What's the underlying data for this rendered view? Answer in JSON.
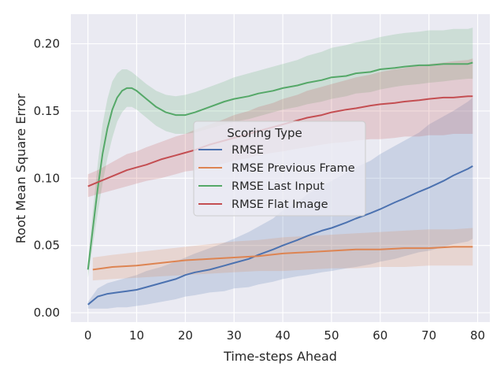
{
  "chart_data": {
    "type": "line",
    "xlabel": "Time-steps Ahead",
    "ylabel": "Root Mean Square Error",
    "xlim": [
      -3.5,
      82.5
    ],
    "ylim": [
      -0.007,
      0.222
    ],
    "xticks": [
      0,
      10,
      20,
      30,
      40,
      50,
      60,
      70,
      80
    ],
    "yticks": [
      0.0,
      0.05,
      0.1,
      0.15,
      0.2
    ],
    "ytick_labels": [
      "0.00",
      "0.05",
      "0.10",
      "0.15",
      "0.20"
    ],
    "grid": true,
    "legend": {
      "title": "Scoring Type",
      "placement": "center"
    },
    "series": [
      {
        "name": "RMSE",
        "color": "#4c72b0",
        "x": [
          0,
          2,
          4,
          6,
          8,
          10,
          12,
          15,
          18,
          20,
          22,
          25,
          28,
          30,
          33,
          35,
          38,
          40,
          43,
          45,
          48,
          50,
          53,
          55,
          58,
          60,
          63,
          65,
          68,
          70,
          73,
          75,
          78,
          79
        ],
        "y": [
          0.006,
          0.012,
          0.014,
          0.015,
          0.016,
          0.017,
          0.019,
          0.022,
          0.025,
          0.028,
          0.03,
          0.032,
          0.035,
          0.037,
          0.04,
          0.043,
          0.047,
          0.05,
          0.054,
          0.057,
          0.061,
          0.063,
          0.067,
          0.07,
          0.074,
          0.077,
          0.082,
          0.085,
          0.09,
          0.093,
          0.098,
          0.102,
          0.107,
          0.109
        ],
        "lower": [
          0.003,
          0.003,
          0.003,
          0.004,
          0.004,
          0.005,
          0.006,
          0.008,
          0.01,
          0.012,
          0.013,
          0.015,
          0.016,
          0.018,
          0.019,
          0.021,
          0.023,
          0.025,
          0.027,
          0.028,
          0.03,
          0.031,
          0.033,
          0.034,
          0.036,
          0.038,
          0.04,
          0.042,
          0.045,
          0.046,
          0.049,
          0.051,
          0.053,
          0.055
        ],
        "upper": [
          0.008,
          0.018,
          0.022,
          0.024,
          0.026,
          0.028,
          0.031,
          0.034,
          0.038,
          0.041,
          0.044,
          0.048,
          0.052,
          0.055,
          0.06,
          0.064,
          0.07,
          0.076,
          0.082,
          0.088,
          0.094,
          0.098,
          0.104,
          0.108,
          0.113,
          0.118,
          0.124,
          0.128,
          0.134,
          0.14,
          0.146,
          0.15,
          0.157,
          0.16
        ]
      },
      {
        "name": "RMSE Previous Frame",
        "color": "#dd8452",
        "x": [
          1,
          5,
          10,
          15,
          20,
          25,
          30,
          35,
          40,
          45,
          50,
          55,
          60,
          65,
          70,
          75,
          79
        ],
        "y": [
          0.032,
          0.034,
          0.035,
          0.037,
          0.039,
          0.04,
          0.041,
          0.042,
          0.044,
          0.045,
          0.046,
          0.047,
          0.047,
          0.048,
          0.048,
          0.049,
          0.049
        ],
        "lower": [
          0.024,
          0.025,
          0.026,
          0.027,
          0.028,
          0.029,
          0.03,
          0.031,
          0.031,
          0.032,
          0.033,
          0.033,
          0.034,
          0.034,
          0.035,
          0.035,
          0.035
        ],
        "upper": [
          0.041,
          0.043,
          0.045,
          0.047,
          0.049,
          0.051,
          0.053,
          0.054,
          0.056,
          0.057,
          0.058,
          0.059,
          0.06,
          0.061,
          0.062,
          0.062,
          0.063
        ]
      },
      {
        "name": "RMSE Last Input",
        "color": "#55a868",
        "x": [
          0,
          1,
          2,
          3,
          4,
          5,
          6,
          7,
          8,
          9,
          10,
          12,
          14,
          16,
          18,
          20,
          22,
          25,
          28,
          30,
          33,
          35,
          38,
          40,
          43,
          45,
          48,
          50,
          53,
          55,
          58,
          60,
          63,
          65,
          68,
          70,
          73,
          75,
          78,
          79
        ],
        "y": [
          0.032,
          0.062,
          0.092,
          0.118,
          0.137,
          0.151,
          0.16,
          0.165,
          0.167,
          0.167,
          0.165,
          0.159,
          0.153,
          0.149,
          0.147,
          0.147,
          0.149,
          0.153,
          0.157,
          0.159,
          0.161,
          0.163,
          0.165,
          0.167,
          0.169,
          0.171,
          0.173,
          0.175,
          0.176,
          0.178,
          0.179,
          0.181,
          0.182,
          0.183,
          0.184,
          0.184,
          0.185,
          0.185,
          0.185,
          0.186
        ],
        "lower": [
          0.026,
          0.05,
          0.074,
          0.096,
          0.115,
          0.13,
          0.142,
          0.149,
          0.153,
          0.153,
          0.151,
          0.145,
          0.139,
          0.135,
          0.133,
          0.133,
          0.134,
          0.137,
          0.14,
          0.142,
          0.144,
          0.146,
          0.149,
          0.151,
          0.153,
          0.155,
          0.157,
          0.159,
          0.161,
          0.163,
          0.164,
          0.166,
          0.168,
          0.169,
          0.17,
          0.171,
          0.172,
          0.173,
          0.174,
          0.174
        ],
        "upper": [
          0.038,
          0.075,
          0.11,
          0.14,
          0.159,
          0.172,
          0.178,
          0.181,
          0.181,
          0.179,
          0.176,
          0.17,
          0.165,
          0.162,
          0.161,
          0.162,
          0.164,
          0.168,
          0.172,
          0.175,
          0.178,
          0.18,
          0.183,
          0.185,
          0.188,
          0.191,
          0.194,
          0.197,
          0.199,
          0.201,
          0.203,
          0.205,
          0.207,
          0.208,
          0.209,
          0.21,
          0.21,
          0.211,
          0.211,
          0.212
        ]
      },
      {
        "name": "RMSE Flat Image",
        "color": "#c44e52",
        "x": [
          0,
          2,
          4,
          6,
          8,
          10,
          12,
          15,
          18,
          20,
          22,
          25,
          28,
          30,
          33,
          35,
          38,
          40,
          43,
          45,
          48,
          50,
          53,
          55,
          58,
          60,
          63,
          65,
          68,
          70,
          73,
          75,
          78,
          79
        ],
        "y": [
          0.094,
          0.097,
          0.1,
          0.103,
          0.106,
          0.108,
          0.11,
          0.114,
          0.117,
          0.119,
          0.121,
          0.125,
          0.128,
          0.13,
          0.133,
          0.135,
          0.138,
          0.14,
          0.143,
          0.145,
          0.147,
          0.149,
          0.151,
          0.152,
          0.154,
          0.155,
          0.156,
          0.157,
          0.158,
          0.159,
          0.16,
          0.16,
          0.161,
          0.161
        ],
        "lower": [
          0.086,
          0.088,
          0.09,
          0.092,
          0.094,
          0.096,
          0.098,
          0.1,
          0.103,
          0.105,
          0.106,
          0.109,
          0.111,
          0.113,
          0.115,
          0.117,
          0.119,
          0.12,
          0.122,
          0.123,
          0.125,
          0.126,
          0.127,
          0.128,
          0.129,
          0.129,
          0.13,
          0.131,
          0.131,
          0.132,
          0.132,
          0.133,
          0.133,
          0.133
        ],
        "upper": [
          0.103,
          0.106,
          0.11,
          0.114,
          0.118,
          0.12,
          0.123,
          0.127,
          0.131,
          0.133,
          0.136,
          0.14,
          0.144,
          0.147,
          0.15,
          0.153,
          0.156,
          0.159,
          0.162,
          0.165,
          0.168,
          0.17,
          0.173,
          0.175,
          0.177,
          0.179,
          0.181,
          0.182,
          0.184,
          0.185,
          0.186,
          0.187,
          0.188,
          0.189
        ]
      }
    ]
  }
}
